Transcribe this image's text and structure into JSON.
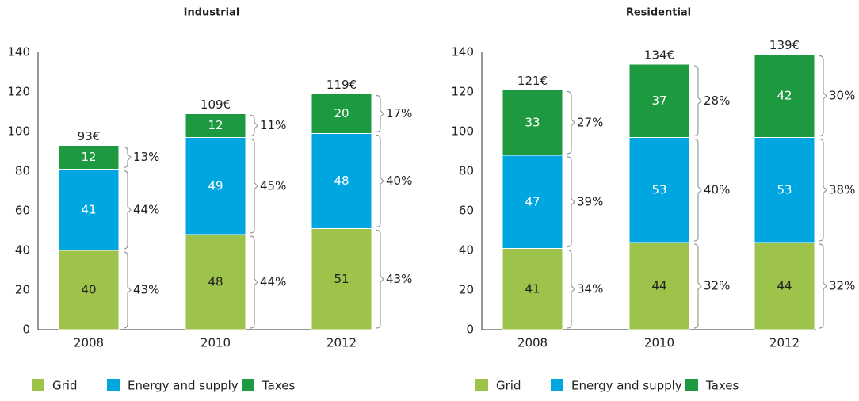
{
  "chart_data": [
    {
      "type": "stacked-bar",
      "title": "Industrial",
      "categories": [
        "2008",
        "2010",
        "2012"
      ],
      "series": [
        {
          "name": "Grid",
          "color": "#9dc34b",
          "values": [
            40,
            48,
            51
          ],
          "shares": [
            43,
            44,
            43
          ],
          "share_labels": [
            "43%",
            "44%",
            "43%"
          ]
        },
        {
          "name": "Energy and supply",
          "color": "#00a6e0",
          "values": [
            41,
            49,
            48
          ],
          "shares": [
            44,
            45,
            40
          ],
          "share_labels": [
            "44%",
            "45%",
            "40%"
          ]
        },
        {
          "name": "Taxes",
          "color": "#1d9a3f",
          "values": [
            12,
            12,
            20
          ],
          "shares": [
            13,
            11,
            17
          ],
          "share_labels": [
            "13%",
            "11%",
            "17%"
          ]
        }
      ],
      "totals": [
        93,
        109,
        119
      ],
      "total_labels": [
        "93€",
        "109€",
        "119€"
      ],
      "ylim": [
        0,
        140
      ],
      "yticks": [
        0,
        20,
        40,
        60,
        80,
        100,
        120,
        140
      ],
      "grid": false
    },
    {
      "type": "stacked-bar",
      "title": "Residential",
      "categories": [
        "2008",
        "2010",
        "2012"
      ],
      "series": [
        {
          "name": "Grid",
          "color": "#9dc34b",
          "values": [
            41,
            44,
            44
          ],
          "shares": [
            34,
            32,
            32
          ],
          "share_labels": [
            "34%",
            "32%",
            "32%"
          ]
        },
        {
          "name": "Energy and supply",
          "color": "#00a6e0",
          "values": [
            47,
            53,
            53
          ],
          "shares": [
            39,
            40,
            38
          ],
          "share_labels": [
            "39%",
            "40%",
            "38%"
          ]
        },
        {
          "name": "Taxes",
          "color": "#1d9a3f",
          "values": [
            33,
            37,
            42
          ],
          "shares": [
            27,
            28,
            30
          ],
          "share_labels": [
            "27%",
            "28%",
            "30%"
          ]
        }
      ],
      "totals": [
        121,
        134,
        139
      ],
      "total_labels": [
        "121€",
        "134€",
        "139€"
      ],
      "ylim": [
        0,
        140
      ],
      "yticks": [
        0,
        20,
        40,
        60,
        80,
        100,
        120,
        140
      ],
      "grid": false
    }
  ]
}
